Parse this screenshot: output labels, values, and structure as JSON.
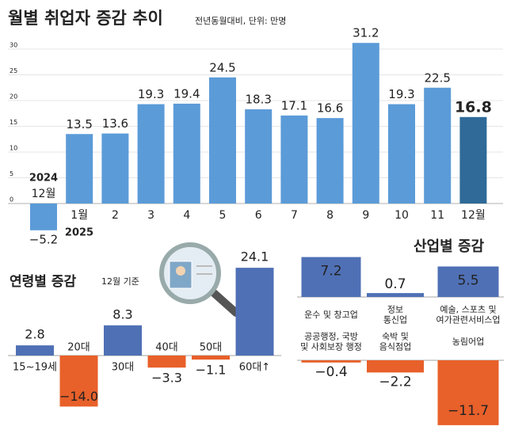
{
  "chart_data": [
    {
      "type": "bar",
      "title": "월별 취업자 증감 추이",
      "subtitle": "전년동월대비, 단위: 만명",
      "categories": [
        "12월",
        "1월",
        "2",
        "3",
        "4",
        "5",
        "6",
        "7",
        "8",
        "9",
        "10",
        "11",
        "12월"
      ],
      "year_labels": [
        "2024",
        "2025"
      ],
      "values": [
        -5.2,
        13.5,
        13.6,
        19.3,
        19.4,
        24.5,
        18.3,
        17.1,
        16.6,
        31.2,
        19.3,
        22.5,
        16.8
      ],
      "value_labels": [
        "−5.2",
        "13.5",
        "13.6",
        "19.3",
        "19.4",
        "24.5",
        "18.3",
        "17.1",
        "16.6",
        "31.2",
        "19.3",
        "22.5",
        "16.8"
      ],
      "color": "#5b9bd8",
      "highlight_color": "#2f6a98",
      "ylim": [
        -5.5,
        33
      ],
      "yticks": [
        0,
        5,
        10,
        15,
        20,
        25,
        30
      ],
      "grid": true
    },
    {
      "type": "bar",
      "title": "연령별 증감",
      "subtitle": "12월 기준",
      "categories": [
        "15~19세",
        "20대",
        "30대",
        "40대",
        "50대",
        "60대↑"
      ],
      "values": [
        2.8,
        -14.0,
        8.3,
        -3.3,
        -1.1,
        24.1
      ],
      "value_labels": [
        "2.8",
        "−14.0",
        "8.3",
        "−3.3",
        "−1.1",
        "24.1"
      ],
      "positive_color": "#4f70b5",
      "negative_color": "#e8602a"
    },
    {
      "type": "bar",
      "title": "산업별 증감",
      "categories": [
        "운수 및 창고업",
        "정보\n통신업",
        "예술, 스포츠 및\n여가관련서비스업",
        "공공행정, 국방\n및 사회보장 행정",
        "숙박 및\n음식점업",
        "농림어업"
      ],
      "values": [
        7.2,
        0.7,
        5.5,
        -0.4,
        -2.2,
        -11.7
      ],
      "value_labels": [
        "7.2",
        "0.7",
        "5.5",
        "−0.4",
        "−2.2",
        "−11.7"
      ],
      "positive_color": "#4f70b5",
      "negative_color": "#e8602a"
    }
  ]
}
